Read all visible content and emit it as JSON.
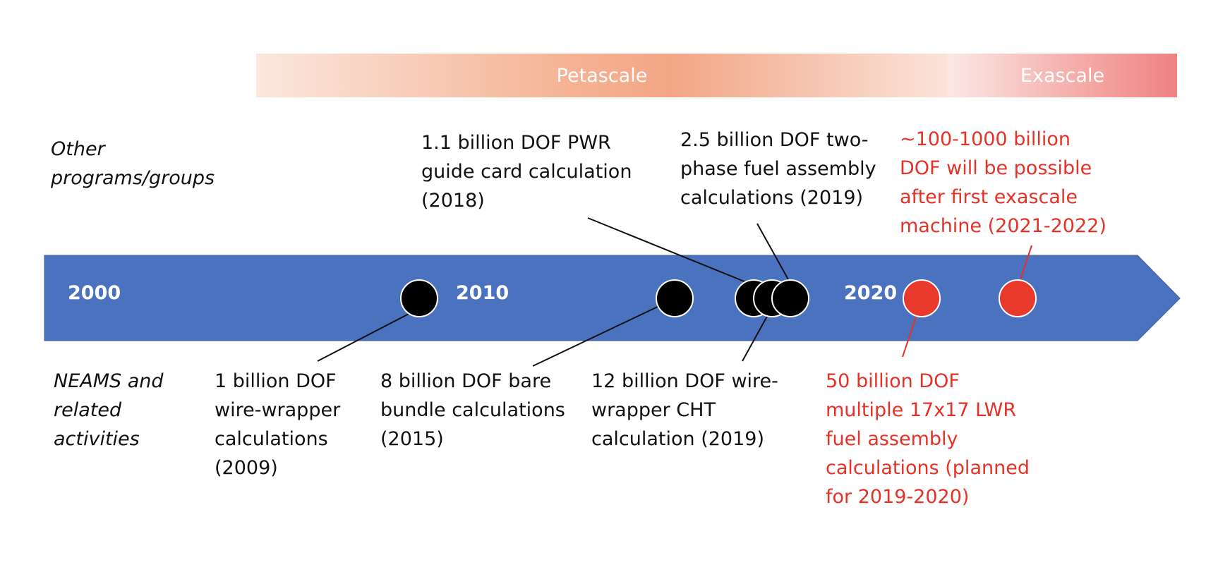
{
  "bands": {
    "petascale": "Petascale",
    "exascale": "Exascale"
  },
  "side_labels": {
    "other": "Other\nprograms/groups",
    "neams": "NEAMS and\nrelated\nactivities"
  },
  "years": [
    "2000",
    "2010",
    "2020"
  ],
  "milestones_above": [
    {
      "text": "1.1 billion DOF PWR\nguide card calculation\n(2018)"
    },
    {
      "text": "2.5 billion DOF two-\nphase fuel assembly\ncalculations (2019)"
    },
    {
      "text": "~100-1000 billion\nDOF will be possible\nafter first exascale\nmachine (2021-2022)"
    }
  ],
  "milestones_below": [
    {
      "text": "1 billion DOF\nwire-wrapper\ncalculations\n(2009)"
    },
    {
      "text": "8 billion DOF bare\nbundle calculations\n(2015)"
    },
    {
      "text": "12 billion DOF wire-\nwrapper CHT\ncalculation (2019)"
    },
    {
      "text": "50 billion DOF\nmultiple 17x17 LWR\nfuel assembly\ncalculations (planned\nfor 2019-2020)"
    }
  ],
  "colors": {
    "arrow": "#4a72be",
    "completed": "#000000",
    "planned": "#e8392a"
  }
}
